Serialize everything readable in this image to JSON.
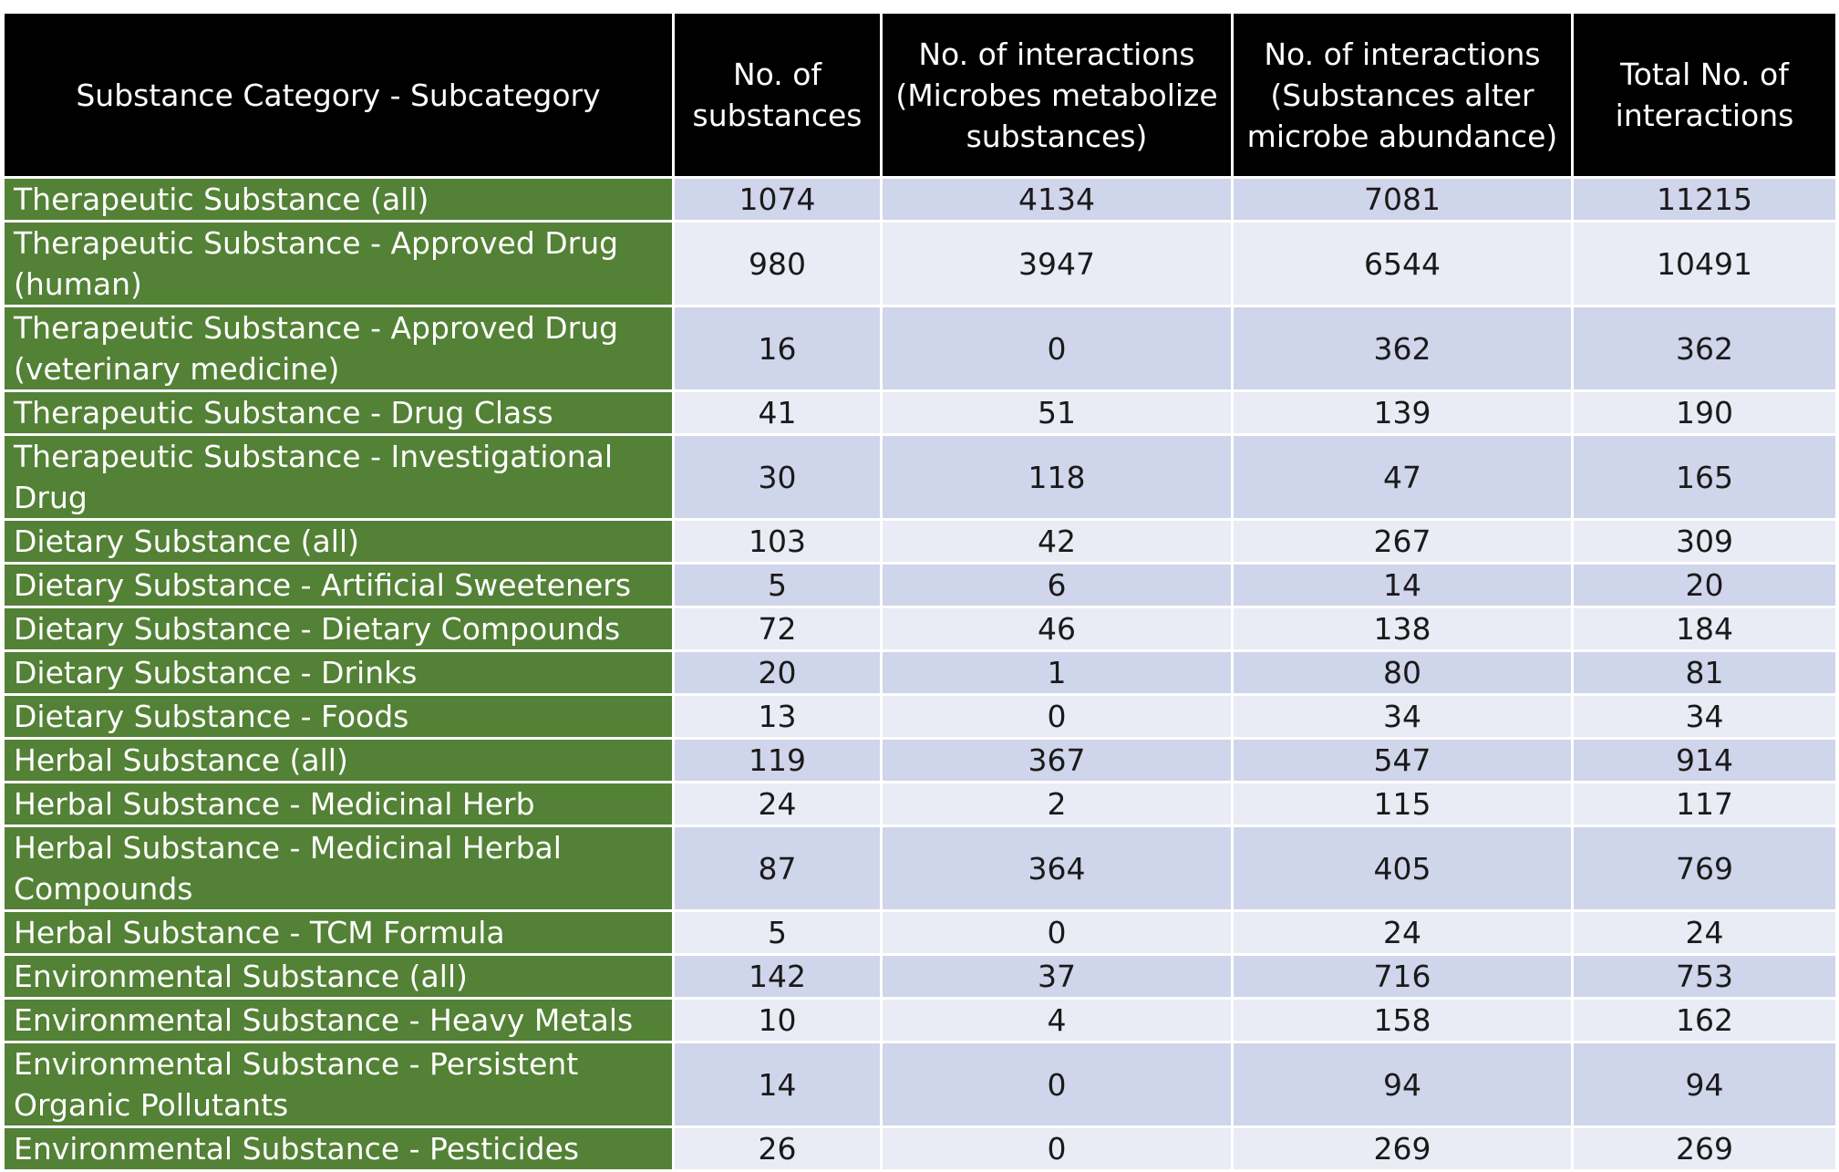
{
  "table": {
    "headers": [
      "Substance Category - Subcategory",
      "No. of substances",
      "No. of interactions (Microbes metabolize substances)",
      "No. of interactions (Substances alter microbe abundance)",
      "Total No. of interactions"
    ],
    "rows": [
      {
        "label": "Therapeutic Substance (all)",
        "values": [
          "1074",
          "4134",
          "7081",
          "11215"
        ],
        "lines": 1
      },
      {
        "label": "Therapeutic Substance - Approved Drug (human)",
        "values": [
          "980",
          "3947",
          "6544",
          "10491"
        ],
        "lines": 2
      },
      {
        "label": "Therapeutic Substance - Approved Drug (veterinary medicine)",
        "values": [
          "16",
          "0",
          "362",
          "362"
        ],
        "lines": 2
      },
      {
        "label": "Therapeutic Substance - Drug Class",
        "values": [
          "41",
          "51",
          "139",
          "190"
        ],
        "lines": 1
      },
      {
        "label": "Therapeutic Substance - Investigational Drug",
        "values": [
          "30",
          "118",
          "47",
          "165"
        ],
        "lines": 2
      },
      {
        "label": "Dietary Substance (all)",
        "values": [
          "103",
          "42",
          "267",
          "309"
        ],
        "lines": 1
      },
      {
        "label": "Dietary Substance - Artificial Sweeteners",
        "values": [
          "5",
          "6",
          "14",
          "20"
        ],
        "lines": 1
      },
      {
        "label": "Dietary Substance - Dietary Compounds",
        "values": [
          "72",
          "46",
          "138",
          "184"
        ],
        "lines": 1
      },
      {
        "label": "Dietary Substance - Drinks",
        "values": [
          "20",
          "1",
          "80",
          "81"
        ],
        "lines": 1
      },
      {
        "label": "Dietary Substance - Foods",
        "values": [
          "13",
          "0",
          "34",
          "34"
        ],
        "lines": 1
      },
      {
        "label": "Herbal Substance (all)",
        "values": [
          "119",
          "367",
          "547",
          "914"
        ],
        "lines": 1
      },
      {
        "label": "Herbal Substance - Medicinal Herb",
        "values": [
          "24",
          "2",
          "115",
          "117"
        ],
        "lines": 1
      },
      {
        "label": "Herbal Substance - Medicinal Herbal Compounds",
        "values": [
          "87",
          "364",
          "405",
          "769"
        ],
        "lines": 2
      },
      {
        "label": "Herbal Substance - TCM Formula",
        "values": [
          "5",
          "0",
          "24",
          "24"
        ],
        "lines": 1
      },
      {
        "label": "Environmental Substance (all)",
        "values": [
          "142",
          "37",
          "716",
          "753"
        ],
        "lines": 1
      },
      {
        "label": "Environmental Substance - Heavy Metals",
        "values": [
          "10",
          "4",
          "158",
          "162"
        ],
        "lines": 1
      },
      {
        "label": "Environmental Substance - Persistent Organic Pollutants",
        "values": [
          "14",
          "0",
          "94",
          "94"
        ],
        "lines": 2
      },
      {
        "label": "Environmental Substance - Pesticides",
        "values": [
          "26",
          "0",
          "269",
          "269"
        ],
        "lines": 1
      }
    ]
  },
  "colors": {
    "header_bg": "#000000",
    "header_text": "#ffffff",
    "label_bg": "#538135",
    "label_text": "#ffffff",
    "band_a": "#cfd5ea",
    "band_b": "#e9ebf5"
  }
}
